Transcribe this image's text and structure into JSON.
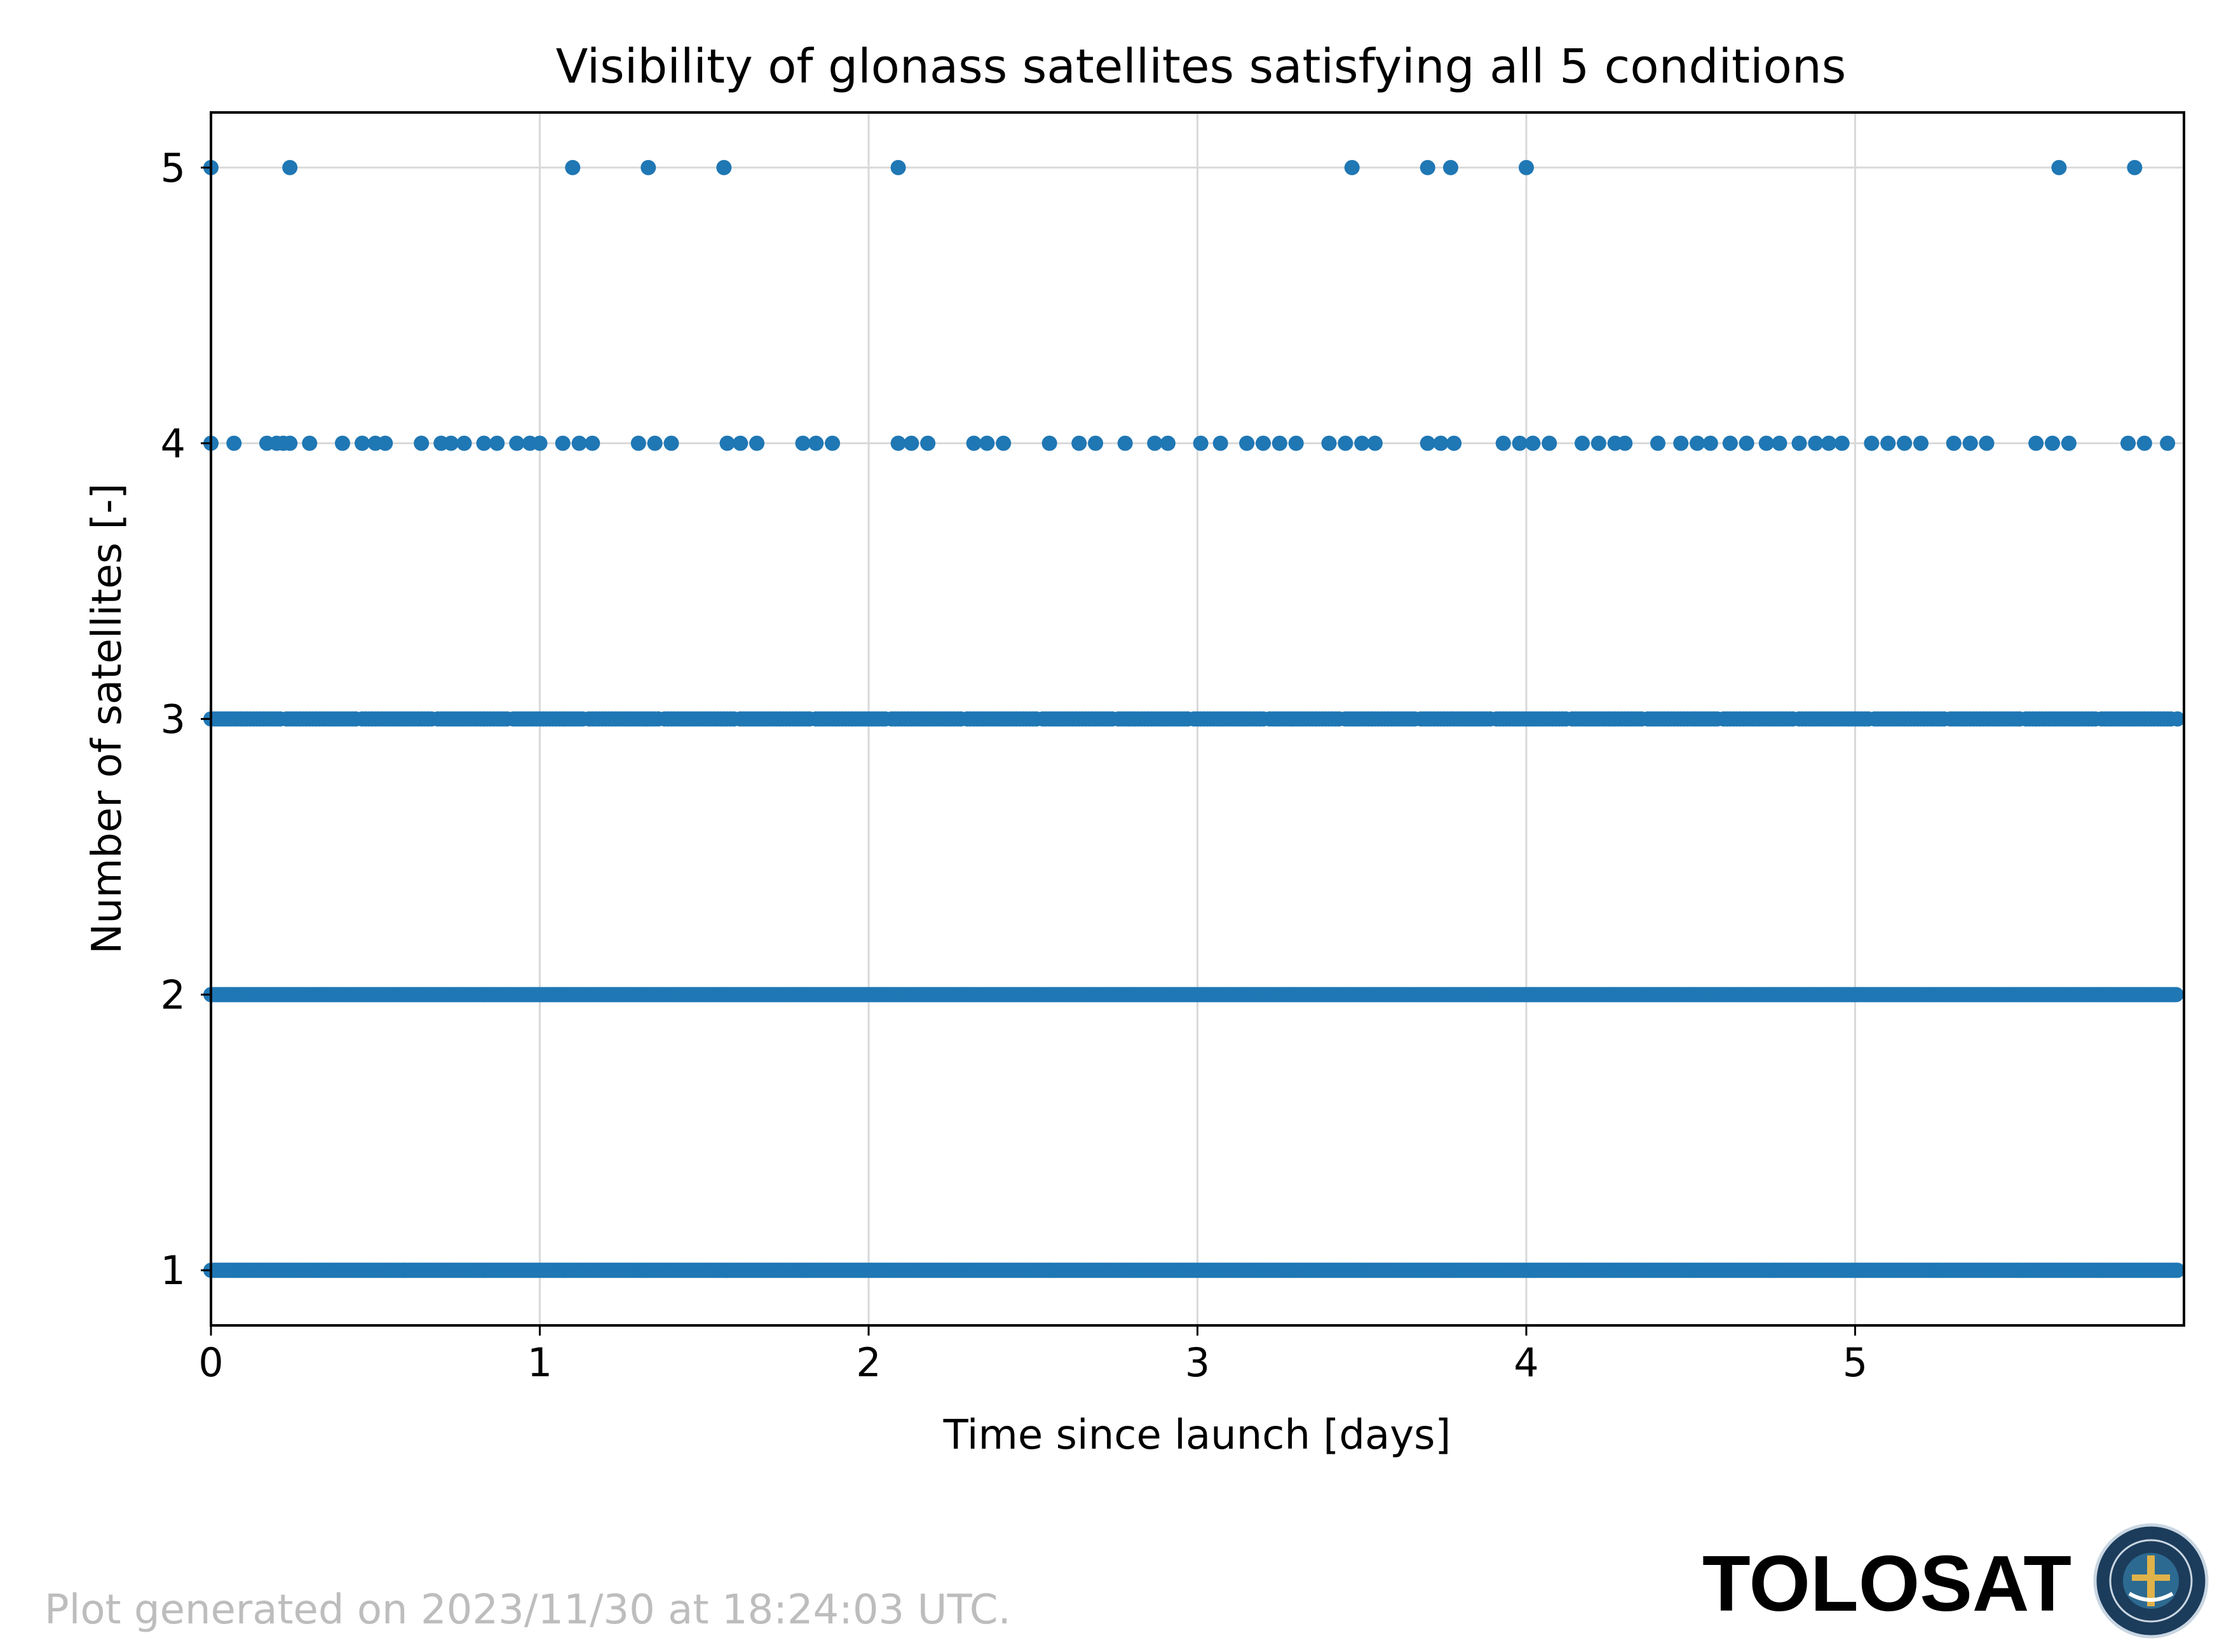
{
  "chart_data": {
    "type": "scatter",
    "title": "Visibility of glonass satellites satisfying all 5 conditions",
    "xlabel": "Time since launch [days]",
    "ylabel": "Number of satellites [-]",
    "xlim": [
      0,
      6.0
    ],
    "ylim": [
      0.8,
      5.2
    ],
    "xticks": [
      0,
      1,
      2,
      3,
      4,
      5
    ],
    "yticks": [
      1,
      2,
      3,
      4,
      5
    ],
    "grid": true,
    "marker_color": "#1f77b4",
    "series": [
      {
        "values_at_1": "continuous",
        "x_y1_range": [
          0,
          5.98
        ],
        "x_y2_range": [
          0,
          5.98
        ],
        "x_y3_range": [
          0,
          5.98
        ],
        "x_y4": [
          0.0,
          0.07,
          0.17,
          0.2,
          0.22,
          0.24,
          0.3,
          0.4,
          0.46,
          0.5,
          0.53,
          0.64,
          0.7,
          0.73,
          0.77,
          0.83,
          0.87,
          0.93,
          0.97,
          1.0,
          1.07,
          1.12,
          1.16,
          1.3,
          1.35,
          1.4,
          1.57,
          1.61,
          1.66,
          1.8,
          1.84,
          1.89,
          2.09,
          2.13,
          2.18,
          2.32,
          2.36,
          2.41,
          2.55,
          2.64,
          2.69,
          2.78,
          2.87,
          2.91,
          3.01,
          3.07,
          3.15,
          3.2,
          3.25,
          3.3,
          3.4,
          3.45,
          3.5,
          3.54,
          3.7,
          3.74,
          3.78,
          3.93,
          3.98,
          4.02,
          4.07,
          4.17,
          4.22,
          4.27,
          4.3,
          4.4,
          4.47,
          4.52,
          4.56,
          4.62,
          4.67,
          4.73,
          4.77,
          4.83,
          4.88,
          4.92,
          4.96,
          5.05,
          5.1,
          5.15,
          5.2,
          5.3,
          5.35,
          5.4,
          5.55,
          5.6,
          5.65,
          5.83,
          5.88,
          5.95
        ],
        "x_y5": [
          0.0,
          0.24,
          1.1,
          1.33,
          1.56,
          2.09,
          3.47,
          3.7,
          3.77,
          4.0,
          5.62,
          5.85
        ]
      }
    ]
  },
  "footer": {
    "generated_text": "Plot generated on 2023/11/30 at 18:24:03 UTC.",
    "brand": "TOLOSAT",
    "logo_ring_text": "ASTRE-CC SUPAERO TOLOSAT"
  },
  "colors": {
    "grid": "#d9d9d9",
    "footer_text": "#bdbdbd",
    "logo_bg": "#1c3c5b"
  }
}
